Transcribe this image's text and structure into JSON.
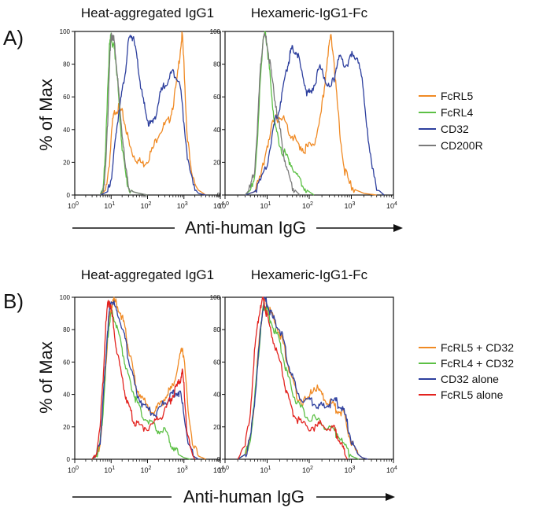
{
  "figure": {
    "panel_a_label": "A)",
    "panel_b_label": "B)",
    "ylabel": "% of Max",
    "xlabel": "Anti-human IgG"
  },
  "colors": {
    "orange": "#f08a24",
    "green": "#5cc045",
    "blue": "#2d3f9e",
    "gray": "#7a7a7a",
    "red": "#e3231f"
  },
  "chart_data": [
    {
      "type": "line",
      "title": "Heat-aggregated IgG1",
      "panel": "A)",
      "xscale": "log",
      "xlim": [
        1,
        10000
      ],
      "ylim": [
        0,
        100
      ],
      "yticks": [
        "0",
        "20",
        "40",
        "60",
        "80",
        "100"
      ],
      "xticks": [
        "10^0",
        "10^1",
        "10^2",
        "10^3",
        "10^4"
      ],
      "series": [
        {
          "name": "FcRL5",
          "color": "#f08a24",
          "x": [
            5,
            7,
            9,
            11,
            13,
            16,
            20,
            25,
            32,
            40,
            55,
            75,
            100,
            140,
            200,
            280,
            380,
            500,
            650,
            800,
            900,
            1000,
            1200,
            1600,
            2500,
            4000
          ],
          "y": [
            0,
            3,
            20,
            45,
            52,
            53,
            50,
            42,
            30,
            25,
            21,
            19,
            22,
            28,
            38,
            42,
            45,
            55,
            70,
            90,
            98,
            80,
            40,
            12,
            3,
            0
          ]
        },
        {
          "name": "FcRL4",
          "color": "#5cc045",
          "x": [
            5,
            6,
            7,
            8,
            9,
            10,
            11,
            12,
            13,
            15,
            17,
            20,
            25,
            30,
            40,
            60,
            100
          ],
          "y": [
            0,
            5,
            25,
            65,
            90,
            98,
            92,
            90,
            85,
            70,
            50,
            30,
            12,
            5,
            2,
            1,
            0
          ]
        },
        {
          "name": "CD32",
          "color": "#2d3f9e",
          "x": [
            5,
            8,
            10,
            12,
            14,
            17,
            20,
            25,
            30,
            35,
            40,
            50,
            60,
            75,
            90,
            110,
            140,
            180,
            230,
            300,
            400,
            500,
            650,
            800,
            1000,
            1300,
            1800,
            2500,
            4000
          ],
          "y": [
            0,
            2,
            10,
            25,
            40,
            55,
            62,
            78,
            93,
            98,
            96,
            85,
            72,
            58,
            50,
            43,
            44,
            52,
            62,
            68,
            72,
            75,
            73,
            65,
            45,
            20,
            5,
            1,
            0
          ]
        },
        {
          "name": "CD200R",
          "color": "#7a7a7a",
          "x": [
            5,
            6,
            7,
            8,
            9,
            10,
            11,
            12,
            13,
            15,
            17,
            20,
            25,
            30,
            40,
            60,
            100
          ],
          "y": [
            0,
            3,
            15,
            45,
            80,
            96,
            98,
            95,
            88,
            72,
            55,
            38,
            15,
            6,
            2,
            1,
            0
          ]
        }
      ]
    },
    {
      "type": "line",
      "title": "Hexameric-IgG1-Fc",
      "panel": "A)",
      "xscale": "log",
      "xlim": [
        1,
        10000
      ],
      "ylim": [
        0,
        100
      ],
      "yticks": [
        "0",
        "20",
        "40",
        "60",
        "80",
        "100"
      ],
      "xticks": [
        "10^0",
        "10^1",
        "10^2",
        "10^3",
        "10^4"
      ],
      "series": [
        {
          "name": "FcRL5",
          "color": "#f08a24",
          "x": [
            3,
            5,
            7,
            10,
            13,
            17,
            22,
            28,
            35,
            45,
            60,
            80,
            100,
            130,
            170,
            220,
            280,
            330,
            380,
            450,
            550,
            700,
            900,
            1300,
            2000,
            4000
          ],
          "y": [
            0,
            2,
            10,
            30,
            42,
            47,
            48,
            44,
            38,
            34,
            30,
            28,
            30,
            32,
            40,
            62,
            88,
            97,
            85,
            60,
            35,
            15,
            7,
            3,
            1,
            0
          ]
        },
        {
          "name": "FcRL4",
          "color": "#5cc045",
          "x": [
            3,
            4,
            5,
            6,
            7,
            8,
            9,
            10,
            11,
            13,
            15,
            18,
            22,
            28,
            35,
            45,
            60,
            80,
            100,
            130
          ],
          "y": [
            0,
            3,
            12,
            35,
            75,
            95,
            98,
            92,
            80,
            60,
            45,
            35,
            28,
            24,
            20,
            14,
            8,
            4,
            2,
            0
          ]
        },
        {
          "name": "CD32",
          "color": "#2d3f9e",
          "x": [
            3,
            5,
            7,
            10,
            13,
            16,
            20,
            25,
            30,
            35,
            40,
            50,
            60,
            75,
            90,
            110,
            140,
            180,
            230,
            300,
            380,
            450,
            550,
            700,
            900,
            1100,
            1400,
            1800,
            2300,
            3000,
            4000,
            6000
          ],
          "y": [
            0,
            2,
            8,
            20,
            35,
            46,
            55,
            68,
            78,
            86,
            90,
            88,
            80,
            70,
            62,
            63,
            70,
            78,
            72,
            64,
            70,
            80,
            84,
            80,
            82,
            87,
            84,
            70,
            45,
            18,
            4,
            0
          ]
        },
        {
          "name": "CD200R",
          "color": "#7a7a7a",
          "x": [
            3,
            4,
            5,
            6,
            7,
            8,
            9,
            10,
            12,
            14,
            17,
            20,
            25,
            30,
            40,
            50,
            60
          ],
          "y": [
            0,
            4,
            15,
            45,
            80,
            96,
            97,
            92,
            78,
            65,
            52,
            40,
            25,
            14,
            5,
            2,
            0
          ]
        }
      ]
    },
    {
      "type": "line",
      "title": "Heat-aggregated IgG1",
      "panel": "B)",
      "xscale": "log",
      "xlim": [
        1,
        10000
      ],
      "ylim": [
        0,
        100
      ],
      "yticks": [
        "0",
        "20",
        "40",
        "60",
        "80",
        "100"
      ],
      "xticks": [
        "10^0",
        "10^1",
        "10^2",
        "10^3",
        "10^4"
      ],
      "series": [
        {
          "name": "FcRL5 + CD32",
          "color": "#f08a24",
          "x": [
            3,
            4,
            5,
            6,
            7,
            8,
            9,
            10,
            12,
            15,
            20,
            25,
            30,
            40,
            50,
            70,
            100,
            150,
            200,
            300,
            400,
            500,
            650,
            800,
            900,
            1000,
            1300,
            1800,
            2500,
            4000
          ],
          "y": [
            0,
            2,
            10,
            30,
            55,
            75,
            88,
            95,
            98,
            95,
            88,
            78,
            68,
            55,
            45,
            38,
            32,
            30,
            32,
            38,
            42,
            45,
            55,
            65,
            70,
            62,
            30,
            8,
            2,
            0
          ]
        },
        {
          "name": "FcRL4 + CD32",
          "color": "#5cc045",
          "x": [
            3,
            4,
            5,
            6,
            7,
            8,
            9,
            10,
            12,
            15,
            20,
            25,
            30,
            40,
            50,
            70,
            100,
            150,
            200,
            300,
            400,
            500,
            700,
            1000,
            1500
          ],
          "y": [
            0,
            2,
            10,
            30,
            55,
            75,
            85,
            90,
            88,
            80,
            68,
            58,
            50,
            42,
            35,
            28,
            24,
            20,
            18,
            17,
            12,
            8,
            3,
            1,
            0
          ]
        },
        {
          "name": "CD32 alone",
          "color": "#2d3f9e",
          "x": [
            3,
            4,
            5,
            6,
            7,
            8,
            9,
            10,
            12,
            15,
            20,
            25,
            30,
            40,
            50,
            70,
            100,
            150,
            200,
            300,
            400,
            500,
            650,
            800,
            1000,
            1300,
            1800,
            2500
          ],
          "y": [
            0,
            3,
            12,
            35,
            60,
            80,
            92,
            98,
            96,
            90,
            82,
            72,
            62,
            50,
            42,
            35,
            30,
            28,
            30,
            35,
            38,
            40,
            42,
            40,
            28,
            10,
            2,
            0
          ]
        },
        {
          "name": "FcRL5 alone",
          "color": "#e3231f",
          "x": [
            3,
            4,
            5,
            6,
            7,
            8,
            9,
            10,
            12,
            15,
            20,
            25,
            30,
            40,
            50,
            70,
            100,
            150,
            200,
            300,
            400,
            500,
            650,
            800,
            900,
            1000,
            1200,
            1500,
            2000
          ],
          "y": [
            0,
            5,
            20,
            50,
            80,
            95,
            98,
            92,
            80,
            65,
            50,
            40,
            32,
            25,
            22,
            20,
            20,
            22,
            25,
            30,
            35,
            40,
            45,
            50,
            55,
            45,
            20,
            5,
            0
          ]
        }
      ]
    },
    {
      "type": "line",
      "title": "Hexameric-IgG1-Fc",
      "panel": "B)",
      "xscale": "log",
      "xlim": [
        1,
        10000
      ],
      "ylim": [
        0,
        100
      ],
      "yticks": [
        "0",
        "20",
        "40",
        "60",
        "80",
        "100"
      ],
      "xticks": [
        "10^0",
        "10^1",
        "10^2",
        "10^3",
        "10^4"
      ],
      "series": [
        {
          "name": "FcRL5 + CD32",
          "color": "#f08a24",
          "x": [
            2,
            3,
            4,
            5,
            6,
            7,
            8,
            9,
            10,
            12,
            15,
            20,
            25,
            30,
            40,
            50,
            70,
            100,
            130,
            170,
            220,
            300,
            400,
            500,
            650,
            800,
            1000,
            1300,
            1800,
            2500
          ],
          "y": [
            0,
            3,
            12,
            35,
            62,
            82,
            95,
            98,
            96,
            90,
            85,
            78,
            70,
            60,
            48,
            40,
            35,
            38,
            45,
            42,
            38,
            35,
            32,
            30,
            28,
            20,
            10,
            4,
            1,
            0
          ]
        },
        {
          "name": "FcRL4 + CD32",
          "color": "#5cc045",
          "x": [
            2,
            3,
            4,
            5,
            6,
            7,
            8,
            9,
            10,
            12,
            15,
            20,
            25,
            30,
            40,
            50,
            70,
            100,
            150,
            200,
            300,
            400,
            500,
            700,
            1000,
            1500
          ],
          "y": [
            0,
            3,
            12,
            35,
            60,
            80,
            92,
            95,
            92,
            86,
            80,
            72,
            62,
            52,
            42,
            35,
            30,
            26,
            24,
            22,
            20,
            17,
            15,
            8,
            2,
            0
          ]
        },
        {
          "name": "CD32 alone",
          "color": "#2d3f9e",
          "x": [
            2,
            3,
            4,
            5,
            6,
            7,
            8,
            9,
            10,
            12,
            15,
            20,
            25,
            30,
            40,
            50,
            70,
            100,
            130,
            170,
            220,
            300,
            400,
            500,
            650,
            800,
            1000,
            1300,
            1800,
            2500
          ],
          "y": [
            0,
            3,
            12,
            35,
            60,
            80,
            94,
            98,
            96,
            90,
            85,
            80,
            72,
            62,
            50,
            42,
            38,
            36,
            35,
            33,
            32,
            34,
            36,
            34,
            30,
            22,
            12,
            4,
            1,
            0
          ]
        },
        {
          "name": "FcRL5 alone",
          "color": "#e3231f",
          "x": [
            2,
            3,
            4,
            5,
            6,
            7,
            8,
            9,
            10,
            12,
            15,
            20,
            25,
            30,
            40,
            50,
            70,
            100,
            150,
            200,
            300,
            400,
            500,
            600,
            700,
            800
          ],
          "y": [
            0,
            8,
            30,
            65,
            85,
            95,
            98,
            94,
            88,
            80,
            70,
            60,
            50,
            40,
            30,
            25,
            22,
            20,
            20,
            22,
            20,
            18,
            14,
            8,
            3,
            0
          ]
        }
      ]
    }
  ]
}
